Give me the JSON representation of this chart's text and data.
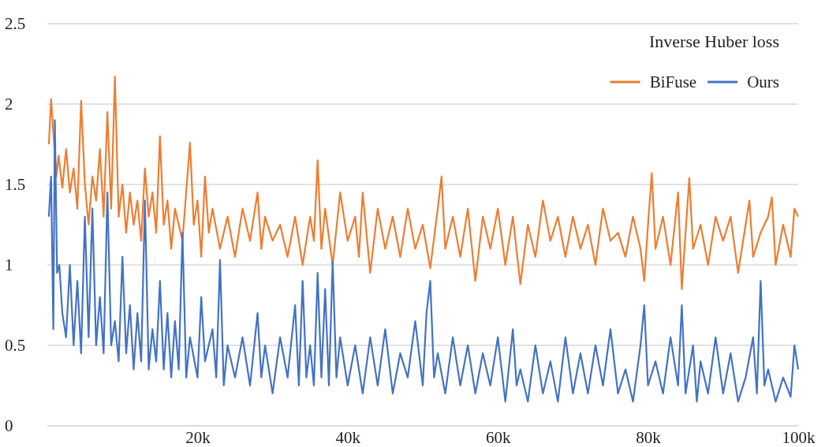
{
  "chart_data": {
    "type": "line",
    "title": "Inverse Huber loss",
    "legend": "top right",
    "grid": "y",
    "line_style": "solid",
    "marker": "none",
    "xlim": [
      0,
      100
    ],
    "xticks": [
      {
        "value": 20,
        "label": "20k"
      },
      {
        "value": 40,
        "label": "40k"
      },
      {
        "value": 60,
        "label": "60k"
      },
      {
        "value": 80,
        "label": "80k"
      },
      {
        "value": 100,
        "label": "100k"
      }
    ],
    "ylim": [
      0,
      2.5
    ],
    "yticks": [
      0,
      0.5,
      1,
      1.5,
      2,
      2.5
    ],
    "series": [
      {
        "name": "BiFuse",
        "color": "#ed7d31",
        "x": [
          0.2,
          0.5,
          1.2,
          1.5,
          2,
          2.5,
          3,
          3.5,
          4,
          4.5,
          5,
          5.5,
          6,
          6.5,
          7,
          7.5,
          8,
          8.5,
          9,
          9.5,
          10,
          10.5,
          11,
          11.5,
          12,
          12.5,
          13,
          13.5,
          14,
          14.5,
          15,
          15.5,
          16,
          16.5,
          17,
          18,
          19,
          19.5,
          20,
          20.5,
          21,
          21.5,
          22,
          23,
          24,
          25,
          26,
          27,
          28,
          28.5,
          29,
          30,
          31,
          32,
          33,
          34,
          35,
          35.5,
          36,
          36.5,
          37,
          38,
          39,
          40,
          41,
          41.5,
          42,
          43,
          44,
          45,
          46,
          47,
          48,
          49,
          50,
          51,
          52,
          52.5,
          53,
          54,
          55,
          56,
          57,
          58,
          59,
          60,
          61,
          62,
          63,
          64,
          65,
          66,
          67,
          68,
          69,
          70,
          71,
          72,
          73,
          74,
          75,
          76,
          77,
          78,
          79,
          79.5,
          80,
          80.5,
          81,
          82,
          83,
          84,
          84.5,
          85,
          85.5,
          86,
          87,
          88,
          89,
          90,
          91,
          92,
          93,
          93.5,
          94,
          95,
          96,
          96.5,
          97,
          98,
          99,
          99.5,
          100
        ],
        "values": [
          1.75,
          2.03,
          1.55,
          1.68,
          1.48,
          1.72,
          1.45,
          1.6,
          1.35,
          2.02,
          1.5,
          1.25,
          1.55,
          1.4,
          1.72,
          1.3,
          1.95,
          1.35,
          2.17,
          1.3,
          1.5,
          1.2,
          1.45,
          1.25,
          1.4,
          1.15,
          1.6,
          1.3,
          1.45,
          1.2,
          1.8,
          1.25,
          1.4,
          1.1,
          1.35,
          1.15,
          1.76,
          1.25,
          1.4,
          1.05,
          1.55,
          1.2,
          1.35,
          1.1,
          1.3,
          1.05,
          1.35,
          1.15,
          1.45,
          1.1,
          1.3,
          1.15,
          1.25,
          1.05,
          1.3,
          1.0,
          1.3,
          1.15,
          1.65,
          1.1,
          1.35,
          1.0,
          1.45,
          1.15,
          1.3,
          1.05,
          1.45,
          0.95,
          1.35,
          1.1,
          1.3,
          1.05,
          1.35,
          1.1,
          1.25,
          0.98,
          1.35,
          1.55,
          1.1,
          1.3,
          1.05,
          1.35,
          0.9,
          1.3,
          1.1,
          1.35,
          1.0,
          1.3,
          0.88,
          1.25,
          1.05,
          1.4,
          1.15,
          1.3,
          1.05,
          1.3,
          1.1,
          1.25,
          1.0,
          1.35,
          1.15,
          1.2,
          1.05,
          1.3,
          1.1,
          0.9,
          1.25,
          1.57,
          1.1,
          1.3,
          1.0,
          1.45,
          0.85,
          1.2,
          1.54,
          1.1,
          1.25,
          1.0,
          1.3,
          1.15,
          1.3,
          0.95,
          1.25,
          1.4,
          1.05,
          1.2,
          1.3,
          1.42,
          1.0,
          1.25,
          1.05,
          1.35,
          1.3
        ]
      },
      {
        "name": "Ours",
        "color": "#4472c4",
        "x": [
          0.2,
          0.5,
          0.8,
          1,
          1.3,
          1.6,
          2,
          2.5,
          3,
          3.5,
          4,
          4.5,
          5,
          5.5,
          6,
          6.5,
          7,
          7.5,
          8,
          8.5,
          9,
          9.5,
          10,
          10.5,
          11,
          11.5,
          12,
          12.5,
          13,
          13.5,
          14,
          14.5,
          15,
          15.5,
          16,
          16.5,
          17,
          17.5,
          18,
          18.5,
          19,
          20,
          20.5,
          21,
          22,
          22.5,
          23,
          23.5,
          24,
          25,
          26,
          27,
          28,
          28.5,
          29,
          30,
          31,
          32,
          33,
          33.5,
          34,
          34.5,
          35,
          35.5,
          36,
          36.5,
          37,
          37.5,
          38,
          38.5,
          39,
          40,
          41,
          42,
          43,
          44,
          45,
          46,
          47,
          48,
          49,
          50,
          50.5,
          51,
          51.5,
          52,
          53,
          54,
          55,
          56,
          57,
          58,
          59,
          60,
          61,
          62,
          62.5,
          63,
          64,
          65,
          66,
          67,
          68,
          69,
          70,
          71,
          72,
          73,
          74,
          75,
          76,
          77,
          78,
          79,
          79.5,
          80,
          81,
          82,
          83,
          84,
          84.5,
          85,
          86,
          86.5,
          87,
          88,
          89,
          90,
          91,
          92,
          93,
          94,
          94.5,
          95,
          95.5,
          96,
          97,
          98,
          99,
          99.5,
          100
        ],
        "values": [
          1.3,
          1.55,
          0.6,
          1.9,
          0.95,
          1.0,
          0.7,
          0.55,
          1.0,
          0.5,
          0.9,
          0.45,
          1.3,
          0.55,
          1.35,
          0.5,
          0.8,
          0.45,
          1.45,
          0.5,
          0.65,
          0.4,
          1.05,
          0.45,
          0.75,
          0.35,
          0.7,
          0.4,
          1.4,
          0.35,
          0.6,
          0.4,
          0.9,
          0.35,
          0.7,
          0.3,
          0.65,
          0.35,
          1.2,
          0.3,
          0.55,
          0.3,
          0.8,
          0.4,
          0.6,
          0.3,
          1.03,
          0.25,
          0.5,
          0.3,
          0.55,
          0.25,
          0.7,
          0.3,
          0.5,
          0.2,
          0.55,
          0.3,
          0.75,
          0.25,
          0.9,
          0.3,
          0.5,
          0.25,
          0.95,
          0.3,
          0.85,
          0.25,
          1.02,
          0.3,
          0.55,
          0.25,
          0.5,
          0.2,
          0.55,
          0.25,
          0.6,
          0.2,
          0.45,
          0.3,
          0.65,
          0.25,
          0.7,
          0.9,
          0.3,
          0.45,
          0.2,
          0.55,
          0.25,
          0.5,
          0.2,
          0.45,
          0.25,
          0.55,
          0.15,
          0.6,
          0.25,
          0.35,
          0.15,
          0.5,
          0.2,
          0.4,
          0.15,
          0.55,
          0.2,
          0.45,
          0.2,
          0.5,
          0.25,
          0.6,
          0.2,
          0.35,
          0.15,
          0.5,
          0.75,
          0.25,
          0.4,
          0.2,
          0.55,
          0.25,
          0.75,
          0.2,
          0.5,
          0.15,
          0.4,
          0.2,
          0.55,
          0.2,
          0.45,
          0.15,
          0.3,
          0.55,
          0.2,
          0.9,
          0.25,
          0.35,
          0.15,
          0.3,
          0.18,
          0.5,
          0.35
        ]
      }
    ]
  }
}
